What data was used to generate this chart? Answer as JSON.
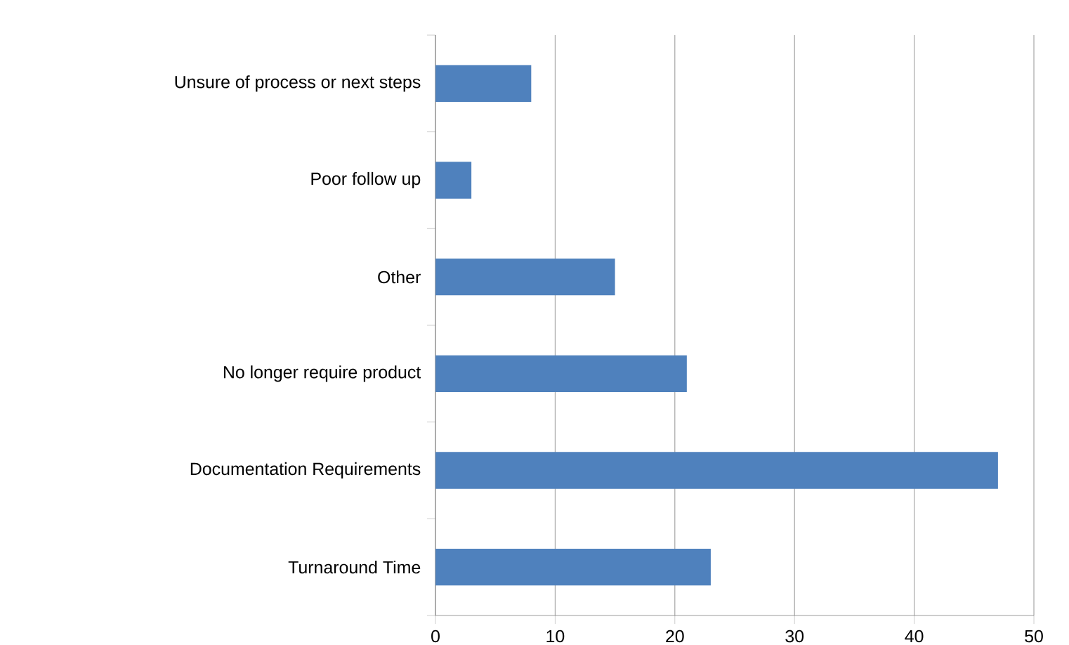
{
  "chart_data": {
    "type": "bar",
    "orientation": "horizontal",
    "categories": [
      "Unsure of process or next steps",
      "Poor follow up",
      "Other",
      "No longer require product",
      "Documentation Requirements",
      "Turnaround Time"
    ],
    "values": [
      8,
      3,
      15,
      21,
      47,
      23
    ],
    "color": "#4f81bd",
    "xlim": [
      0,
      50
    ],
    "xticks": [
      0,
      10,
      20,
      30,
      40,
      50
    ],
    "grid": "x"
  }
}
